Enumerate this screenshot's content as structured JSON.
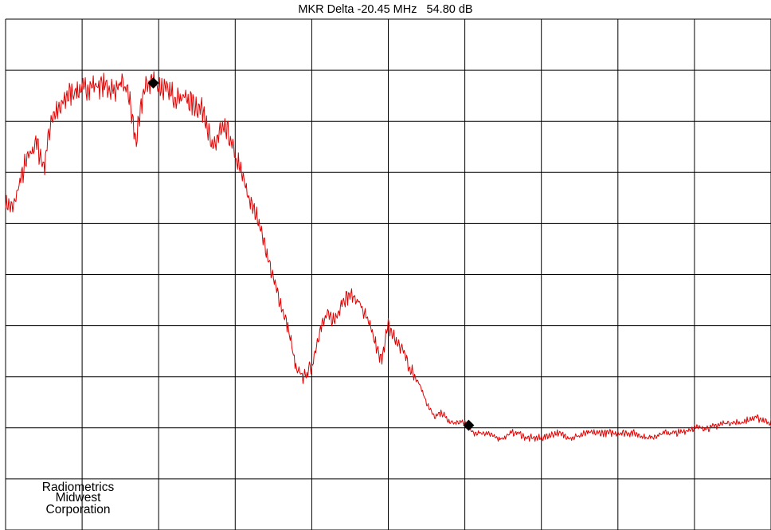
{
  "header": {
    "marker_readout": "MKR Delta -20.45 MHz   54.80 dB"
  },
  "watermark": {
    "line1": "Radiometrics",
    "line2": "Midwest",
    "line3": "Corporation"
  },
  "colors": {
    "trace": "#e00000",
    "grid": "#000000",
    "marker": "#000000",
    "background": "#ffffff"
  },
  "chart_data": {
    "type": "line",
    "title": "MKR Delta -20.45 MHz   54.80 dB",
    "xlabel": "",
    "ylabel": "",
    "xlim": [
      0,
      10
    ],
    "ylim": [
      0,
      10
    ],
    "grid": true,
    "grid_divisions": {
      "x": 10,
      "y": 10
    },
    "series": [
      {
        "color": "#e00000",
        "x": [
          0,
          0.1,
          0.2,
          0.3,
          0.4,
          0.5,
          0.6,
          0.7,
          0.8,
          0.9,
          1.0,
          1.1,
          1.2,
          1.3,
          1.4,
          1.5,
          1.6,
          1.7,
          1.75,
          1.8,
          1.9,
          2.0,
          2.1,
          2.2,
          2.3,
          2.4,
          2.5,
          2.6,
          2.7,
          2.8,
          2.9,
          3.0,
          3.1,
          3.2,
          3.3,
          3.4,
          3.5,
          3.6,
          3.7,
          3.8,
          3.9,
          4.0,
          4.1,
          4.2,
          4.3,
          4.4,
          4.5,
          4.6,
          4.7,
          4.8,
          4.9,
          5.0,
          5.1,
          5.2,
          5.3,
          5.4,
          5.5,
          5.6,
          5.7,
          5.8,
          5.9,
          6.0,
          6.1,
          6.2,
          6.3,
          6.4,
          6.5,
          6.6,
          6.7,
          6.8,
          6.9,
          7.0,
          7.2,
          7.4,
          7.6,
          7.8,
          8.0,
          8.2,
          8.4,
          8.6,
          8.8,
          9.0,
          9.2,
          9.4,
          9.6,
          9.8,
          10.0
        ],
        "values": [
          6.4,
          6.3,
          6.9,
          7.3,
          7.6,
          7.1,
          8.1,
          8.2,
          8.5,
          8.6,
          8.6,
          8.7,
          8.7,
          8.7,
          8.6,
          8.7,
          8.6,
          7.6,
          8.0,
          8.6,
          8.8,
          8.7,
          8.6,
          8.5,
          8.5,
          8.4,
          8.3,
          8.2,
          7.4,
          7.8,
          7.8,
          7.3,
          6.9,
          6.4,
          6.1,
          5.5,
          4.9,
          4.4,
          3.9,
          3.1,
          3.0,
          3.2,
          3.9,
          4.2,
          4.1,
          4.5,
          4.6,
          4.5,
          4.2,
          3.8,
          3.3,
          4.0,
          3.7,
          3.5,
          3.1,
          2.9,
          2.5,
          2.2,
          2.3,
          2.1,
          2.1,
          2.1,
          1.9,
          1.9,
          1.9,
          1.8,
          1.8,
          1.9,
          1.9,
          1.8,
          1.8,
          1.8,
          1.9,
          1.8,
          1.9,
          1.9,
          1.9,
          1.9,
          1.8,
          1.9,
          1.9,
          2.0,
          2.0,
          2.1,
          2.1,
          2.2,
          2.1
        ]
      }
    ],
    "markers": [
      {
        "x": 1.93,
        "y": 8.75
      },
      {
        "x": 6.05,
        "y": 2.05
      }
    ]
  }
}
